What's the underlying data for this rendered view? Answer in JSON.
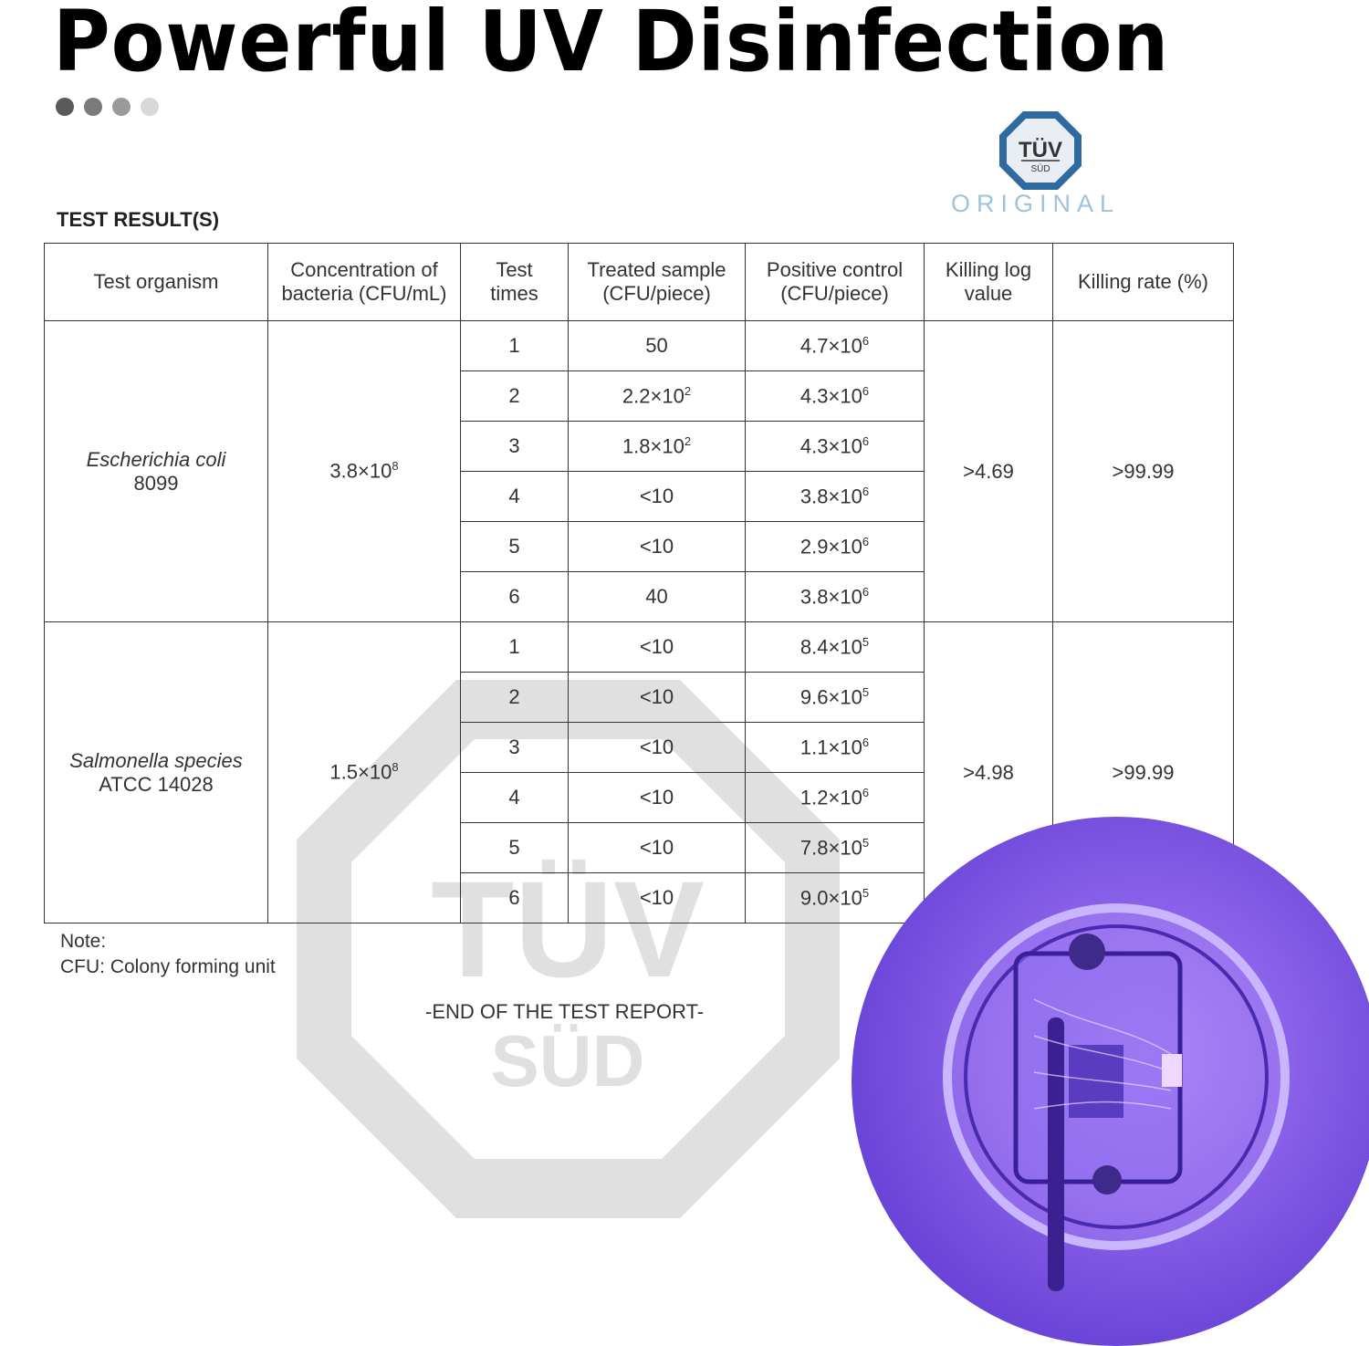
{
  "title": "Powerful UV Disinfection",
  "pager_dots": [
    "#5a5a5a",
    "#7a7a7a",
    "#9a9a9a",
    "#d8d8d8"
  ],
  "certification": {
    "logo_text_top": "TÜV",
    "logo_text_bottom": "SÜD",
    "stamp": "ORIGINAL",
    "color": "#2e6aa0"
  },
  "section_title": "TEST RESULT(S)",
  "table": {
    "headers": [
      "Test organism",
      "Concentration of bacteria (CFU/mL)",
      "Test times",
      "Treated sample (CFU/piece)",
      "Positive control (CFU/piece)",
      "Killing log value",
      "Killing rate (%)"
    ],
    "groups": [
      {
        "organism": "Escherichia coli",
        "strain": "8099",
        "concentration": {
          "m": "3.8×10",
          "e": "8"
        },
        "killing_log": ">4.69",
        "killing_rate": ">99.99",
        "rows": [
          {
            "time": "1",
            "treated": {
              "m": "50",
              "e": ""
            },
            "control": {
              "m": "4.7×10",
              "e": "6"
            }
          },
          {
            "time": "2",
            "treated": {
              "m": "2.2×10",
              "e": "2"
            },
            "control": {
              "m": "4.3×10",
              "e": "6"
            }
          },
          {
            "time": "3",
            "treated": {
              "m": "1.8×10",
              "e": "2"
            },
            "control": {
              "m": "4.3×10",
              "e": "6"
            }
          },
          {
            "time": "4",
            "treated": {
              "m": "<10",
              "e": ""
            },
            "control": {
              "m": "3.8×10",
              "e": "6"
            }
          },
          {
            "time": "5",
            "treated": {
              "m": "<10",
              "e": ""
            },
            "control": {
              "m": "2.9×10",
              "e": "6"
            }
          },
          {
            "time": "6",
            "treated": {
              "m": "40",
              "e": ""
            },
            "control": {
              "m": "3.8×10",
              "e": "6"
            }
          }
        ]
      },
      {
        "organism": "Salmonella species",
        "strain": "ATCC 14028",
        "concentration": {
          "m": "1.5×10",
          "e": "8"
        },
        "killing_log": ">4.98",
        "killing_rate": ">99.99",
        "rows": [
          {
            "time": "1",
            "treated": {
              "m": "<10",
              "e": ""
            },
            "control": {
              "m": "8.4×10",
              "e": "5"
            }
          },
          {
            "time": "2",
            "treated": {
              "m": "<10",
              "e": ""
            },
            "control": {
              "m": "9.6×10",
              "e": "5"
            }
          },
          {
            "time": "3",
            "treated": {
              "m": "<10",
              "e": ""
            },
            "control": {
              "m": "1.1×10",
              "e": "6"
            }
          },
          {
            "time": "4",
            "treated": {
              "m": "<10",
              "e": ""
            },
            "control": {
              "m": "1.2×10",
              "e": "6"
            }
          },
          {
            "time": "5",
            "treated": {
              "m": "<10",
              "e": ""
            },
            "control": {
              "m": "7.8×10",
              "e": "5"
            }
          },
          {
            "time": "6",
            "treated": {
              "m": "<10",
              "e": ""
            },
            "control": {
              "m": "9.0×10",
              "e": "5"
            }
          }
        ]
      }
    ]
  },
  "note": {
    "label": "Note:",
    "text": "CFU: Colony forming unit"
  },
  "end_text": "-END OF THE TEST REPORT-",
  "product_image": {
    "subject": "uv-sterilizer-toothbrush-render",
    "color": "#7b55e2"
  }
}
